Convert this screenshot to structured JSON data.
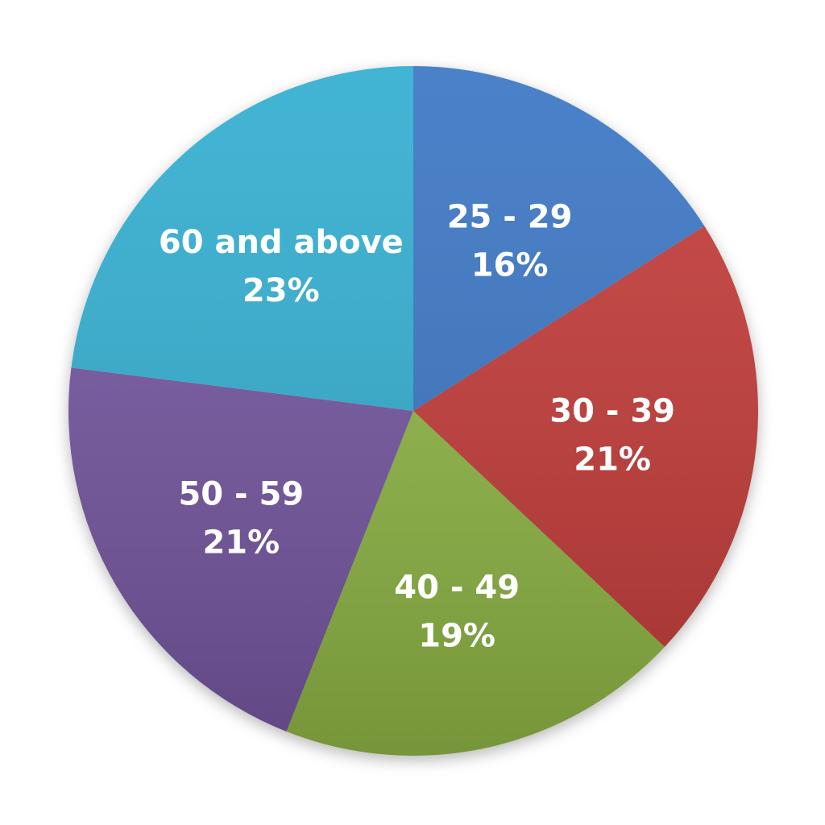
{
  "chart_data": {
    "type": "pie",
    "title": "",
    "slices": [
      {
        "label": "25 - 29",
        "value": 16,
        "value_label": "16%",
        "color": "#3a76c4"
      },
      {
        "label": "30 - 39",
        "value": 21,
        "value_label": "21%",
        "color": "#c23b37"
      },
      {
        "label": "40 - 49",
        "value": 19,
        "value_label": "19%",
        "color": "#8fb645"
      },
      {
        "label": "50 - 59",
        "value": 21,
        "value_label": "21%",
        "color": "#7556a0"
      },
      {
        "label": "60 and above",
        "value": 23,
        "value_label": "23%",
        "color": "#33aed0"
      }
    ],
    "start_angle": "12 o'clock",
    "direction": "clockwise",
    "legend": "none"
  }
}
